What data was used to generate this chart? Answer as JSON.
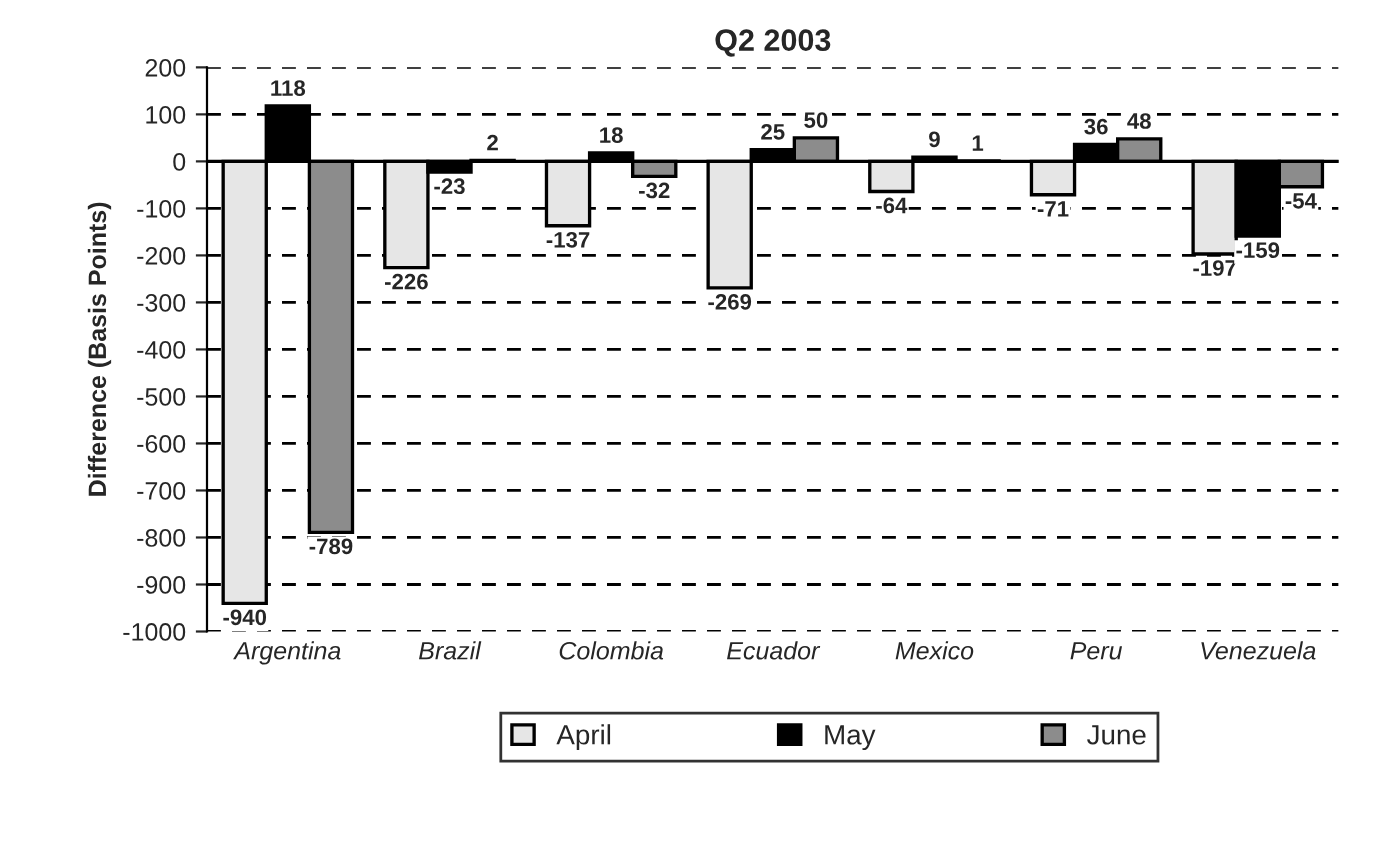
{
  "chart_data": {
    "type": "bar",
    "title": "Q2 2003",
    "ylabel": "Difference (Basis Points)",
    "categories": [
      "Argentina",
      "Brazil",
      "Colombia",
      "Ecuador",
      "Mexico",
      "Peru",
      "Venezuela"
    ],
    "series": [
      {
        "name": "April",
        "color": "#e6e6e6",
        "values": [
          -940,
          -226,
          -137,
          -269,
          -64,
          -71,
          -197
        ]
      },
      {
        "name": "May",
        "color": "#000000",
        "values": [
          118,
          -23,
          18,
          25,
          9,
          36,
          -159
        ]
      },
      {
        "name": "June",
        "color": "#8c8c8c",
        "values": [
          -789,
          2,
          -32,
          50,
          1,
          48,
          -54
        ]
      }
    ],
    "ylim": [
      -1000,
      200
    ],
    "yticks": [
      -1000,
      -900,
      -800,
      -700,
      -600,
      -500,
      -400,
      -300,
      -200,
      -100,
      0,
      100,
      200
    ],
    "grid": "y",
    "legend": "bottom",
    "data_labels": true
  }
}
